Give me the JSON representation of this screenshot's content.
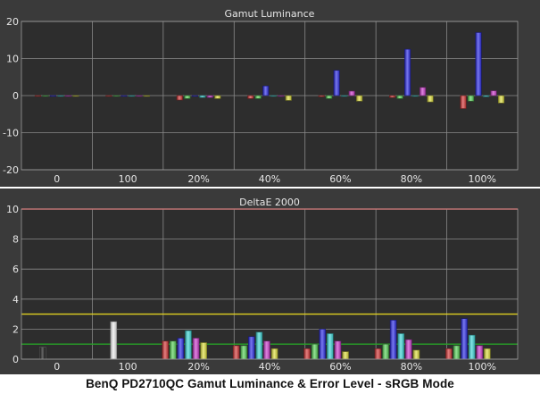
{
  "caption": "BenQ PD2710QC Gamut Luminance & Error Level - sRGB Mode",
  "colors": {
    "panel_bg": "#3a3a3a",
    "plot_bg": "#2d2d2d",
    "grid": "#8a8a8a",
    "text": "#e6e6e6",
    "red": "#d63a3a",
    "green": "#5bd25b",
    "blue": "#3030e8",
    "cyan": "#40d8d8",
    "magenta": "#d040d0",
    "yellow": "#e0e040",
    "white": "#f0f0f0",
    "black": "#141414",
    "gray": "#9a9a9a",
    "threshold_10": "#e84a4a",
    "threshold_3": "#e0d020",
    "threshold_1": "#28a028"
  },
  "chart_data": [
    {
      "type": "bar",
      "title": "Gamut Luminance",
      "categories": [
        "0",
        "100",
        "20%",
        "40%",
        "60%",
        "80%",
        "100%"
      ],
      "bar_colors": [
        "red",
        "green",
        "blue",
        "cyan",
        "magenta",
        "yellow"
      ],
      "groups": [
        {
          "category": "0",
          "values": [
            0,
            0,
            0,
            0,
            0,
            0
          ]
        },
        {
          "category": "100",
          "values": [
            0,
            0,
            0,
            0,
            0,
            0
          ]
        },
        {
          "category": "20%",
          "values": [
            -1.2,
            -0.8,
            -0.2,
            -0.5,
            -0.5,
            -0.8
          ]
        },
        {
          "category": "40%",
          "values": [
            -0.8,
            -0.8,
            2.6,
            -0.2,
            -0.2,
            -1.3
          ]
        },
        {
          "category": "60%",
          "values": [
            -0.3,
            -0.8,
            6.8,
            -0.2,
            1.2,
            -1.5
          ]
        },
        {
          "category": "80%",
          "values": [
            -0.5,
            -0.8,
            12.5,
            -0.2,
            2.2,
            -1.7
          ]
        },
        {
          "category": "100%",
          "values": [
            -3.5,
            -1.5,
            17.0,
            -0.3,
            1.3,
            -2.0
          ]
        }
      ],
      "ylim": [
        -20,
        20
      ],
      "yticks": [
        "20",
        "10",
        "0",
        "-10",
        "-20"
      ]
    },
    {
      "type": "bar",
      "title": "DeltaE 2000",
      "categories": [
        "0",
        "100",
        "20%",
        "40%",
        "60%",
        "80%",
        "100%"
      ],
      "bars": [
        {
          "x": 30,
          "value": 0.8,
          "color": "black"
        },
        {
          "x": 130,
          "value": 2.5,
          "color": "white"
        },
        {
          "x": 230,
          "value": 1.2,
          "color": "red"
        },
        {
          "x": 230,
          "value": 1.2,
          "color": "green"
        },
        {
          "x": 230,
          "value": 1.4,
          "color": "blue"
        },
        {
          "x": 230,
          "value": 1.9,
          "color": "cyan"
        },
        {
          "x": 230,
          "value": 1.4,
          "color": "magenta"
        },
        {
          "x": 230,
          "value": 1.1,
          "color": "yellow"
        },
        {
          "x": 330,
          "value": 0.9,
          "color": "red"
        },
        {
          "x": 330,
          "value": 0.9,
          "color": "green"
        },
        {
          "x": 330,
          "value": 1.5,
          "color": "blue"
        },
        {
          "x": 330,
          "value": 1.8,
          "color": "cyan"
        },
        {
          "x": 330,
          "value": 1.2,
          "color": "magenta"
        },
        {
          "x": 330,
          "value": 0.7,
          "color": "yellow"
        },
        {
          "x": 430,
          "value": 0.7,
          "color": "red"
        },
        {
          "x": 430,
          "value": 1.0,
          "color": "green"
        },
        {
          "x": 430,
          "value": 2.0,
          "color": "blue"
        },
        {
          "x": 430,
          "value": 1.7,
          "color": "cyan"
        },
        {
          "x": 430,
          "value": 1.2,
          "color": "magenta"
        },
        {
          "x": 430,
          "value": 0.5,
          "color": "yellow"
        },
        {
          "x": 530,
          "value": 0.7,
          "color": "red"
        },
        {
          "x": 530,
          "value": 1.0,
          "color": "green"
        },
        {
          "x": 530,
          "value": 2.6,
          "color": "blue"
        },
        {
          "x": 530,
          "value": 1.7,
          "color": "cyan"
        },
        {
          "x": 530,
          "value": 1.3,
          "color": "magenta"
        },
        {
          "x": 530,
          "value": 0.6,
          "color": "yellow"
        },
        {
          "x": 630,
          "value": 0.7,
          "color": "red"
        },
        {
          "x": 630,
          "value": 0.9,
          "color": "green"
        },
        {
          "x": 630,
          "value": 2.7,
          "color": "blue"
        },
        {
          "x": 630,
          "value": 1.6,
          "color": "cyan"
        },
        {
          "x": 630,
          "value": 0.9,
          "color": "magenta"
        },
        {
          "x": 630,
          "value": 0.7,
          "color": "yellow"
        }
      ],
      "thresholds": [
        {
          "value": 10,
          "color": "threshold_10"
        },
        {
          "value": 3,
          "color": "threshold_3"
        },
        {
          "value": 1,
          "color": "threshold_1"
        }
      ],
      "ylim": [
        0,
        10
      ],
      "yticks": [
        "10",
        "8",
        "6",
        "4",
        "2",
        "0"
      ]
    }
  ]
}
